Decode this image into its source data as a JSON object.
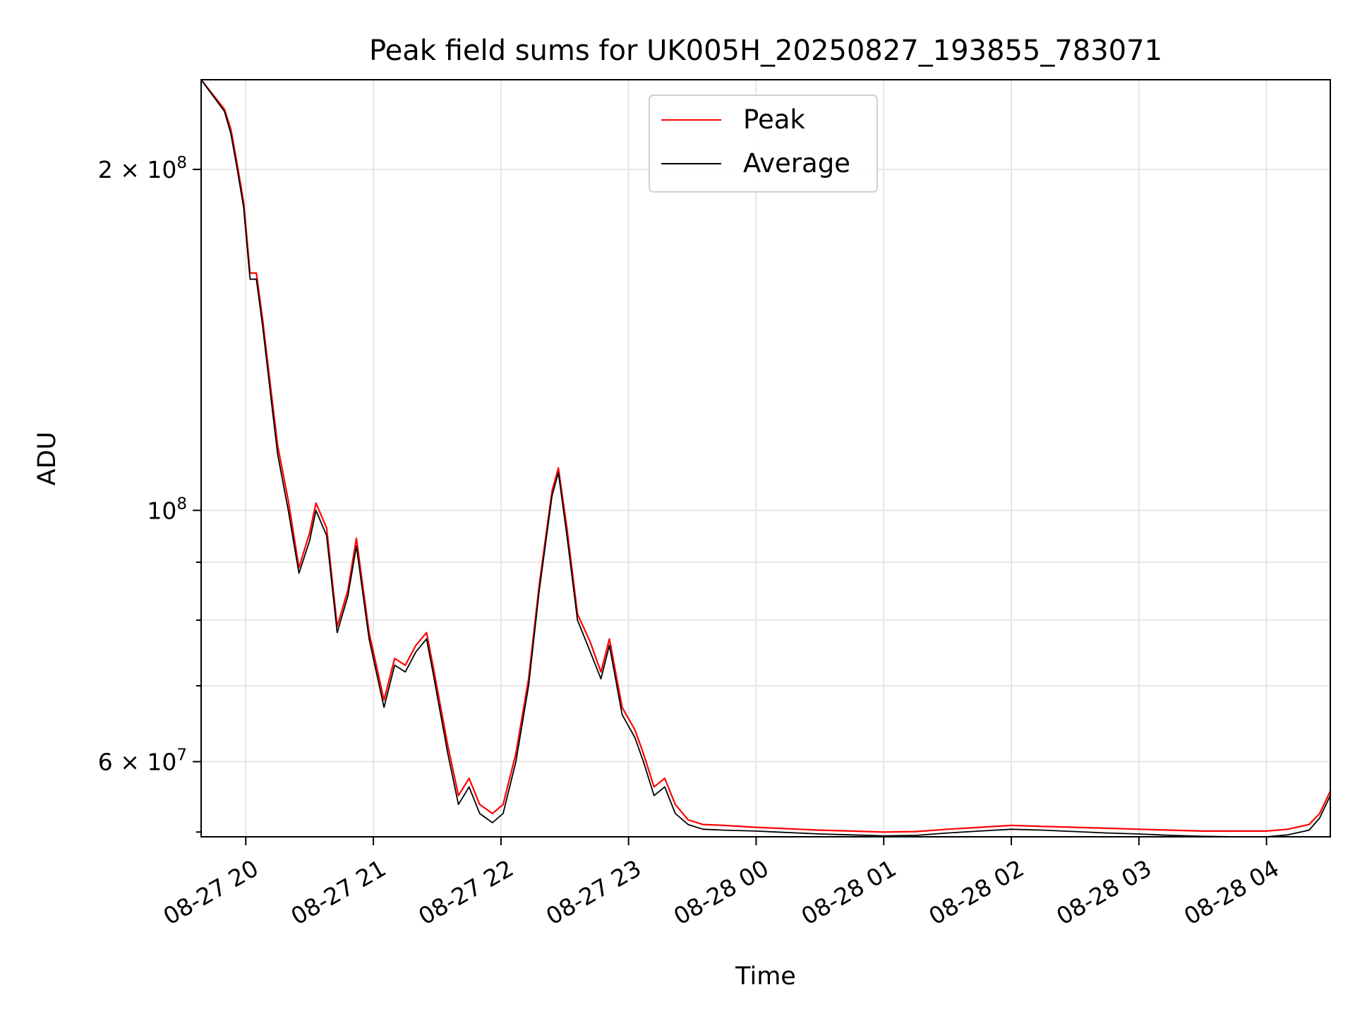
{
  "chart_data": {
    "type": "line",
    "title": "Peak field sums for UK005H_20250827_193855_783071",
    "xlabel": "Time",
    "ylabel": "ADU",
    "y_scale": "log",
    "grid": true,
    "legend_placement": "upper center",
    "xlim": [
      "08-27 19:39",
      "08-28 04:30"
    ],
    "ylim": [
      51500000,
      240000000
    ],
    "x_ticks": [
      {
        "t": "08-27 20:00",
        "label": "08-27 20"
      },
      {
        "t": "08-27 21:00",
        "label": "08-27 21"
      },
      {
        "t": "08-27 22:00",
        "label": "08-27 22"
      },
      {
        "t": "08-27 23:00",
        "label": "08-27 23"
      },
      {
        "t": "08-28 00:00",
        "label": "08-28 00"
      },
      {
        "t": "08-28 01:00",
        "label": "08-28 01"
      },
      {
        "t": "08-28 02:00",
        "label": "08-28 02"
      },
      {
        "t": "08-28 03:00",
        "label": "08-28 03"
      },
      {
        "t": "08-28 04:00",
        "label": "08-28 04"
      }
    ],
    "y_ticks": [
      {
        "value": 60000000,
        "mantissa": "6",
        "exp": "7"
      },
      {
        "value": 100000000,
        "mantissa": "",
        "exp": "8"
      },
      {
        "value": 200000000,
        "mantissa": "2",
        "exp": "8"
      }
    ],
    "y_minor_ticks": [
      70000000,
      80000000,
      90000000
    ],
    "series": [
      {
        "name": "Average",
        "color": "#000000",
        "points": [
          [
            "08-27 19:39",
            240000000
          ],
          [
            "08-27 19:50",
            225000000
          ],
          [
            "08-27 19:53",
            215000000
          ],
          [
            "08-27 19:56",
            200000000
          ],
          [
            "08-27 19:59",
            185000000
          ],
          [
            "08-27 20:02",
            160000000
          ],
          [
            "08-27 20:05",
            160000000
          ],
          [
            "08-27 20:08",
            145000000
          ],
          [
            "08-27 20:12",
            125000000
          ],
          [
            "08-27 20:15",
            112000000
          ],
          [
            "08-27 20:20",
            100000000
          ],
          [
            "08-27 20:25",
            88000000
          ],
          [
            "08-27 20:30",
            94000000
          ],
          [
            "08-27 20:33",
            100000000
          ],
          [
            "08-27 20:38",
            95000000
          ],
          [
            "08-27 20:43",
            78000000
          ],
          [
            "08-27 20:48",
            84000000
          ],
          [
            "08-27 20:52",
            93000000
          ],
          [
            "08-27 20:58",
            77000000
          ],
          [
            "08-27 21:05",
            67000000
          ],
          [
            "08-27 21:10",
            73000000
          ],
          [
            "08-27 21:15",
            72000000
          ],
          [
            "08-27 21:20",
            75000000
          ],
          [
            "08-27 21:25",
            77000000
          ],
          [
            "08-27 21:28",
            72000000
          ],
          [
            "08-27 21:35",
            61000000
          ],
          [
            "08-27 21:40",
            55000000
          ],
          [
            "08-27 21:45",
            57000000
          ],
          [
            "08-27 21:50",
            54000000
          ],
          [
            "08-27 21:56",
            53000000
          ],
          [
            "08-27 22:01",
            54000000
          ],
          [
            "08-27 22:07",
            60000000
          ],
          [
            "08-27 22:13",
            70000000
          ],
          [
            "08-27 22:18",
            85000000
          ],
          [
            "08-27 22:24",
            103000000
          ],
          [
            "08-27 22:27",
            108000000
          ],
          [
            "08-27 22:31",
            95000000
          ],
          [
            "08-27 22:36",
            80000000
          ],
          [
            "08-27 22:42",
            75000000
          ],
          [
            "08-27 22:47",
            71000000
          ],
          [
            "08-27 22:51",
            76000000
          ],
          [
            "08-27 22:57",
            66000000
          ],
          [
            "08-27 23:03",
            63000000
          ],
          [
            "08-27 23:07",
            60000000
          ],
          [
            "08-27 23:12",
            56000000
          ],
          [
            "08-27 23:17",
            57000000
          ],
          [
            "08-27 23:22",
            54000000
          ],
          [
            "08-27 23:28",
            52800000
          ],
          [
            "08-27 23:35",
            52300000
          ],
          [
            "08-27 23:45",
            52200000
          ],
          [
            "08-28 00:00",
            52100000
          ],
          [
            "08-28 00:10",
            52000000
          ],
          [
            "08-28 00:20",
            51900000
          ],
          [
            "08-28 00:30",
            51800000
          ],
          [
            "08-28 00:45",
            51700000
          ],
          [
            "08-28 01:00",
            51600000
          ],
          [
            "08-28 01:15",
            51650000
          ],
          [
            "08-28 01:30",
            51900000
          ],
          [
            "08-28 01:45",
            52100000
          ],
          [
            "08-28 02:00",
            52300000
          ],
          [
            "08-28 02:15",
            52200000
          ],
          [
            "08-28 02:30",
            52050000
          ],
          [
            "08-28 02:45",
            51900000
          ],
          [
            "08-28 03:00",
            51800000
          ],
          [
            "08-28 03:15",
            51650000
          ],
          [
            "08-28 03:30",
            51550000
          ],
          [
            "08-28 03:45",
            51500000
          ],
          [
            "08-28 04:00",
            51500000
          ],
          [
            "08-28 04:10",
            51700000
          ],
          [
            "08-28 04:20",
            52200000
          ],
          [
            "08-28 04:25",
            53500000
          ],
          [
            "08-28 04:30",
            56000000
          ]
        ]
      },
      {
        "name": "Peak",
        "color": "#ff0000",
        "points": [
          [
            "08-27 19:39",
            240000000
          ],
          [
            "08-27 19:50",
            226000000
          ],
          [
            "08-27 19:53",
            217000000
          ],
          [
            "08-27 19:56",
            202000000
          ],
          [
            "08-27 19:59",
            187000000
          ],
          [
            "08-27 20:02",
            162000000
          ],
          [
            "08-27 20:05",
            162000000
          ],
          [
            "08-27 20:08",
            147000000
          ],
          [
            "08-27 20:12",
            127000000
          ],
          [
            "08-27 20:15",
            114000000
          ],
          [
            "08-27 20:20",
            102000000
          ],
          [
            "08-27 20:25",
            89000000
          ],
          [
            "08-27 20:30",
            95500000
          ],
          [
            "08-27 20:33",
            101500000
          ],
          [
            "08-27 20:38",
            96500000
          ],
          [
            "08-27 20:43",
            79000000
          ],
          [
            "08-27 20:48",
            85000000
          ],
          [
            "08-27 20:52",
            94500000
          ],
          [
            "08-27 20:58",
            78000000
          ],
          [
            "08-27 21:05",
            68000000
          ],
          [
            "08-27 21:10",
            74000000
          ],
          [
            "08-27 21:15",
            73000000
          ],
          [
            "08-27 21:20",
            76000000
          ],
          [
            "08-27 21:25",
            78000000
          ],
          [
            "08-27 21:28",
            73000000
          ],
          [
            "08-27 21:35",
            62000000
          ],
          [
            "08-27 21:40",
            56000000
          ],
          [
            "08-27 21:45",
            58000000
          ],
          [
            "08-27 21:50",
            55000000
          ],
          [
            "08-27 21:56",
            54000000
          ],
          [
            "08-27 22:01",
            55000000
          ],
          [
            "08-27 22:07",
            61000000
          ],
          [
            "08-27 22:13",
            71000000
          ],
          [
            "08-27 22:18",
            86000000
          ],
          [
            "08-27 22:24",
            104000000
          ],
          [
            "08-27 22:27",
            109000000
          ],
          [
            "08-27 22:31",
            96500000
          ],
          [
            "08-27 22:36",
            81000000
          ],
          [
            "08-27 22:42",
            76500000
          ],
          [
            "08-27 22:47",
            72000000
          ],
          [
            "08-27 22:51",
            77000000
          ],
          [
            "08-27 22:57",
            67000000
          ],
          [
            "08-27 23:03",
            64000000
          ],
          [
            "08-27 23:07",
            61000000
          ],
          [
            "08-27 23:12",
            57000000
          ],
          [
            "08-27 23:17",
            58000000
          ],
          [
            "08-27 23:22",
            55000000
          ],
          [
            "08-27 23:28",
            53300000
          ],
          [
            "08-27 23:35",
            52800000
          ],
          [
            "08-27 23:45",
            52700000
          ],
          [
            "08-28 00:00",
            52500000
          ],
          [
            "08-28 00:10",
            52400000
          ],
          [
            "08-28 00:20",
            52300000
          ],
          [
            "08-28 00:30",
            52200000
          ],
          [
            "08-28 00:45",
            52100000
          ],
          [
            "08-28 01:00",
            52000000
          ],
          [
            "08-28 01:15",
            52050000
          ],
          [
            "08-28 01:30",
            52300000
          ],
          [
            "08-28 01:45",
            52500000
          ],
          [
            "08-28 02:00",
            52700000
          ],
          [
            "08-28 02:15",
            52600000
          ],
          [
            "08-28 02:30",
            52500000
          ],
          [
            "08-28 02:45",
            52400000
          ],
          [
            "08-28 03:00",
            52300000
          ],
          [
            "08-28 03:15",
            52200000
          ],
          [
            "08-28 03:30",
            52100000
          ],
          [
            "08-28 03:45",
            52100000
          ],
          [
            "08-28 04:00",
            52100000
          ],
          [
            "08-28 04:10",
            52300000
          ],
          [
            "08-28 04:20",
            52800000
          ],
          [
            "08-28 04:25",
            54000000
          ],
          [
            "08-28 04:30",
            56500000
          ]
        ]
      }
    ],
    "legend": [
      {
        "label": "Peak",
        "color": "#ff0000"
      },
      {
        "label": "Average",
        "color": "#000000"
      }
    ]
  }
}
